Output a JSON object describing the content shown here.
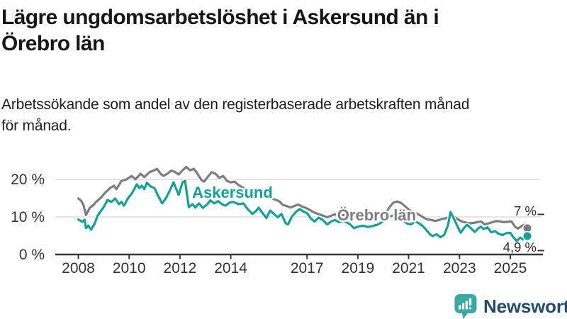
{
  "header": {
    "title": "Lägre ungdomsarbetslöshet i Askersund än i\nÖrebro län",
    "subtitle": "Arbetssökande som andel av den registerbaserade arbetskraften månad\nför månad."
  },
  "branding": {
    "logo_text": "Newsworthy",
    "logo_icon": "bar-chart-speech-bubble-icon",
    "logo_icon_color": "#3ba8a1",
    "logo_text_color": "#254b6b"
  },
  "chart_data": {
    "type": "line",
    "title": "Lägre ungdomsarbetslöshet i Askersund än i Örebro län",
    "subtitle": "Arbetssökande som andel av den registerbaserade arbetskraften månad för månad.",
    "unit": "%",
    "grid": true,
    "xlim": [
      2007.9,
      2026.3
    ],
    "ylim": [
      0,
      25
    ],
    "x_ticks": [
      {
        "year": 2008,
        "label": "2008"
      },
      {
        "year": 2010,
        "label": "2010"
      },
      {
        "year": 2012,
        "label": "2012"
      },
      {
        "year": 2014,
        "label": "2014"
      },
      {
        "year": 2017,
        "label": "2017"
      },
      {
        "year": 2019,
        "label": "2019"
      },
      {
        "year": 2021,
        "label": "2021"
      },
      {
        "year": 2023,
        "label": "2023"
      },
      {
        "year": 2025,
        "label": "2025"
      }
    ],
    "y_ticks": [
      {
        "value": 0,
        "label": "0 %"
      },
      {
        "value": 10,
        "label": "10 %"
      },
      {
        "value": 20,
        "label": "20 %"
      }
    ],
    "series": [
      {
        "name": "Örebro län",
        "color": "#7d7d7d",
        "end_label": "7 %",
        "end_value": 7.0,
        "end_label_side": "above",
        "label_pos": {
          "year": 2018.19,
          "value": 9.05
        },
        "points": [
          [
            2008,
            14.9
          ],
          [
            2008.1,
            14.4
          ],
          [
            2008.2,
            13.2
          ],
          [
            2008.3,
            10.5
          ],
          [
            2008.45,
            12.4
          ],
          [
            2008.6,
            13.2
          ],
          [
            2008.7,
            14
          ],
          [
            2008.9,
            15.2
          ],
          [
            2009.05,
            16.4
          ],
          [
            2009.25,
            17.7
          ],
          [
            2009.4,
            18.3
          ],
          [
            2009.5,
            17.4
          ],
          [
            2009.7,
            19.6
          ],
          [
            2009.9,
            20
          ],
          [
            2010.1,
            20.9
          ],
          [
            2010.25,
            20
          ],
          [
            2010.45,
            21.5
          ],
          [
            2010.6,
            20.6
          ],
          [
            2010.8,
            21.9
          ],
          [
            2010.95,
            22.3
          ],
          [
            2011.1,
            22.8
          ],
          [
            2011.25,
            21.4
          ],
          [
            2011.35,
            20.9
          ],
          [
            2011.5,
            21.5
          ],
          [
            2011.65,
            22.3
          ],
          [
            2011.8,
            22
          ],
          [
            2011.95,
            21.3
          ],
          [
            2012.1,
            22.4
          ],
          [
            2012.25,
            23.3
          ],
          [
            2012.4,
            22.4
          ],
          [
            2012.55,
            22.8
          ],
          [
            2012.7,
            21.4
          ],
          [
            2012.85,
            19.8
          ],
          [
            2012.95,
            19.4
          ],
          [
            2013.1,
            20.7
          ],
          [
            2013.25,
            21.9
          ],
          [
            2013.4,
            21.5
          ],
          [
            2013.55,
            20.4
          ],
          [
            2013.7,
            20.9
          ],
          [
            2013.85,
            19.6
          ],
          [
            2014,
            19.2
          ],
          [
            2014.15,
            19.4
          ],
          [
            2014.3,
            18.5
          ],
          [
            2014.5,
            17.7
          ],
          [
            2014.7,
            17.2
          ],
          [
            2014.85,
            16.8
          ],
          [
            2015,
            16
          ],
          [
            2015.15,
            16.3
          ],
          [
            2015.3,
            15.6
          ],
          [
            2015.45,
            15.2
          ],
          [
            2015.6,
            14.9
          ],
          [
            2015.75,
            14.6
          ],
          [
            2015.9,
            14.2
          ],
          [
            2016.05,
            13.2
          ],
          [
            2016.2,
            12.9
          ],
          [
            2016.35,
            12.5
          ],
          [
            2016.5,
            12.9
          ],
          [
            2016.65,
            13.3
          ],
          [
            2016.8,
            12.8
          ],
          [
            2016.95,
            12.4
          ],
          [
            2017.1,
            11.9
          ],
          [
            2017.25,
            11.3
          ],
          [
            2017.4,
            10.9
          ],
          [
            2017.6,
            10.4
          ],
          [
            2017.8,
            9.9
          ],
          [
            2017.95,
            10.3
          ],
          [
            2018.1,
            10.7
          ],
          [
            2018.25,
            10.4
          ],
          [
            2018.45,
            10.5
          ],
          [
            2018.6,
            10.1
          ],
          [
            2018.8,
            9.8
          ],
          [
            2019,
            9.9
          ],
          [
            2019.2,
            9.6
          ],
          [
            2019.4,
            9.7
          ],
          [
            2019.6,
            9.6
          ],
          [
            2019.8,
            9.8
          ],
          [
            2019.95,
            10.1
          ],
          [
            2020.1,
            11
          ],
          [
            2020.25,
            12.6
          ],
          [
            2020.4,
            13.8
          ],
          [
            2020.55,
            14.1
          ],
          [
            2020.7,
            13.7
          ],
          [
            2020.85,
            12.9
          ],
          [
            2021,
            12
          ],
          [
            2021.15,
            11.3
          ],
          [
            2021.3,
            11
          ],
          [
            2021.45,
            10.4
          ],
          [
            2021.6,
            9.8
          ],
          [
            2021.75,
            9.3
          ],
          [
            2021.9,
            9.2
          ],
          [
            2022.05,
            8.9
          ],
          [
            2022.2,
            9.2
          ],
          [
            2022.35,
            9.5
          ],
          [
            2022.5,
            9.7
          ],
          [
            2022.65,
            10.5
          ],
          [
            2022.8,
            10.1
          ],
          [
            2022.95,
            9.3
          ],
          [
            2023.1,
            8.8
          ],
          [
            2023.25,
            8.5
          ],
          [
            2023.4,
            8.3
          ],
          [
            2023.55,
            8.4
          ],
          [
            2023.7,
            8.6
          ],
          [
            2023.85,
            8.8
          ],
          [
            2024,
            8
          ],
          [
            2024.15,
            8.3
          ],
          [
            2024.3,
            8.6
          ],
          [
            2024.45,
            8.9
          ],
          [
            2024.6,
            8.8
          ],
          [
            2024.75,
            8.6
          ],
          [
            2024.9,
            8.7
          ],
          [
            2025.05,
            8.8
          ],
          [
            2025.2,
            7.3
          ],
          [
            2025.3,
            6.9
          ],
          [
            2025.45,
            7.6
          ],
          [
            2025.55,
            7.9
          ],
          [
            2025.67,
            7
          ]
        ]
      },
      {
        "name": "Askersund",
        "color": "#12a19a",
        "end_label": "4,9 %",
        "end_value": 4.9,
        "end_label_side": "below",
        "label_pos": {
          "year": 2012.48,
          "value": 15.1
        },
        "points": [
          [
            2008,
            9.3
          ],
          [
            2008.15,
            8.7
          ],
          [
            2008.25,
            9.2
          ],
          [
            2008.3,
            7
          ],
          [
            2008.4,
            7.7
          ],
          [
            2008.5,
            6.6
          ],
          [
            2008.65,
            8.3
          ],
          [
            2008.75,
            10.2
          ],
          [
            2008.9,
            11.7
          ],
          [
            2009,
            12.6
          ],
          [
            2009.15,
            14.5
          ],
          [
            2009.3,
            14
          ],
          [
            2009.45,
            14.9
          ],
          [
            2009.6,
            13.4
          ],
          [
            2009.7,
            14
          ],
          [
            2009.8,
            13
          ],
          [
            2009.95,
            14.9
          ],
          [
            2010.1,
            16.2
          ],
          [
            2010.2,
            17.4
          ],
          [
            2010.3,
            18.7
          ],
          [
            2010.4,
            17.7
          ],
          [
            2010.5,
            18.3
          ],
          [
            2010.6,
            17.4
          ],
          [
            2010.7,
            19.1
          ],
          [
            2010.85,
            18.1
          ],
          [
            2011,
            17.6
          ],
          [
            2011.15,
            15.5
          ],
          [
            2011.3,
            13.6
          ],
          [
            2011.45,
            15
          ],
          [
            2011.6,
            17
          ],
          [
            2011.75,
            19.2
          ],
          [
            2011.85,
            17.5
          ],
          [
            2011.95,
            15.9
          ],
          [
            2012.1,
            19.2
          ],
          [
            2012.2,
            19.6
          ],
          [
            2012.35,
            12.6
          ],
          [
            2012.5,
            13.4
          ],
          [
            2012.6,
            12.5
          ],
          [
            2012.75,
            13.6
          ],
          [
            2012.9,
            12.4
          ],
          [
            2013.05,
            13.2
          ],
          [
            2013.2,
            14.4
          ],
          [
            2013.35,
            13.6
          ],
          [
            2013.5,
            14.2
          ],
          [
            2013.65,
            13.4
          ],
          [
            2013.8,
            13
          ],
          [
            2013.95,
            13.8
          ],
          [
            2014.1,
            14
          ],
          [
            2014.3,
            13.4
          ],
          [
            2014.5,
            13.6
          ],
          [
            2014.65,
            12.2
          ],
          [
            2014.85,
            10.8
          ],
          [
            2015,
            11.6
          ],
          [
            2015.1,
            12.5
          ],
          [
            2015.25,
            11
          ],
          [
            2015.4,
            9.7
          ],
          [
            2015.55,
            11.7
          ],
          [
            2015.7,
            10.8
          ],
          [
            2015.85,
            9.9
          ],
          [
            2016,
            10.8
          ],
          [
            2016.15,
            8.4
          ],
          [
            2016.25,
            8
          ],
          [
            2016.4,
            10
          ],
          [
            2016.55,
            11.2
          ],
          [
            2016.7,
            12.1
          ],
          [
            2016.85,
            11.5
          ],
          [
            2017,
            11
          ],
          [
            2017.15,
            9.6
          ],
          [
            2017.3,
            8.8
          ],
          [
            2017.45,
            9.8
          ],
          [
            2017.6,
            9.3
          ],
          [
            2017.8,
            8
          ],
          [
            2017.95,
            8.8
          ],
          [
            2018.1,
            9.2
          ],
          [
            2018.25,
            8.6
          ],
          [
            2018.4,
            8.9
          ],
          [
            2018.55,
            8.6
          ],
          [
            2018.7,
            8
          ],
          [
            2018.85,
            7
          ],
          [
            2019,
            7.4
          ],
          [
            2019.2,
            7.7
          ],
          [
            2019.4,
            7.3
          ],
          [
            2019.6,
            7.6
          ],
          [
            2019.8,
            8
          ],
          [
            2019.95,
            8.6
          ],
          [
            2020.1,
            9.3
          ],
          [
            2020.3,
            10.2
          ],
          [
            2020.5,
            10.6
          ],
          [
            2020.65,
            10.1
          ],
          [
            2020.8,
            9
          ],
          [
            2020.95,
            8.2
          ],
          [
            2021.1,
            8
          ],
          [
            2021.25,
            8.9
          ],
          [
            2021.4,
            8.3
          ],
          [
            2021.55,
            7.6
          ],
          [
            2021.7,
            6.5
          ],
          [
            2021.85,
            5.3
          ],
          [
            2021.95,
            4.9
          ],
          [
            2022.1,
            5.4
          ],
          [
            2022.25,
            4.6
          ],
          [
            2022.4,
            5.2
          ],
          [
            2022.55,
            7.8
          ],
          [
            2022.65,
            11.3
          ],
          [
            2022.75,
            10
          ],
          [
            2022.9,
            7.8
          ],
          [
            2023.05,
            5.8
          ],
          [
            2023.2,
            7.2
          ],
          [
            2023.3,
            7.9
          ],
          [
            2023.45,
            7
          ],
          [
            2023.6,
            6
          ],
          [
            2023.75,
            7
          ],
          [
            2023.85,
            7.4
          ],
          [
            2023.95,
            6.8
          ],
          [
            2024.1,
            7.2
          ],
          [
            2024.25,
            5.9
          ],
          [
            2024.4,
            6.2
          ],
          [
            2024.55,
            5.5
          ],
          [
            2024.7,
            5.2
          ],
          [
            2024.85,
            5.7
          ],
          [
            2025,
            5.8
          ],
          [
            2025.1,
            4.8
          ],
          [
            2025.25,
            3.6
          ],
          [
            2025.4,
            4.5
          ],
          [
            2025.5,
            4
          ],
          [
            2025.6,
            4.4
          ],
          [
            2025.67,
            4.9
          ]
        ]
      }
    ],
    "legend_position": "inline-labels",
    "axis_color": "#383838",
    "gridline_color": "#dedede"
  }
}
